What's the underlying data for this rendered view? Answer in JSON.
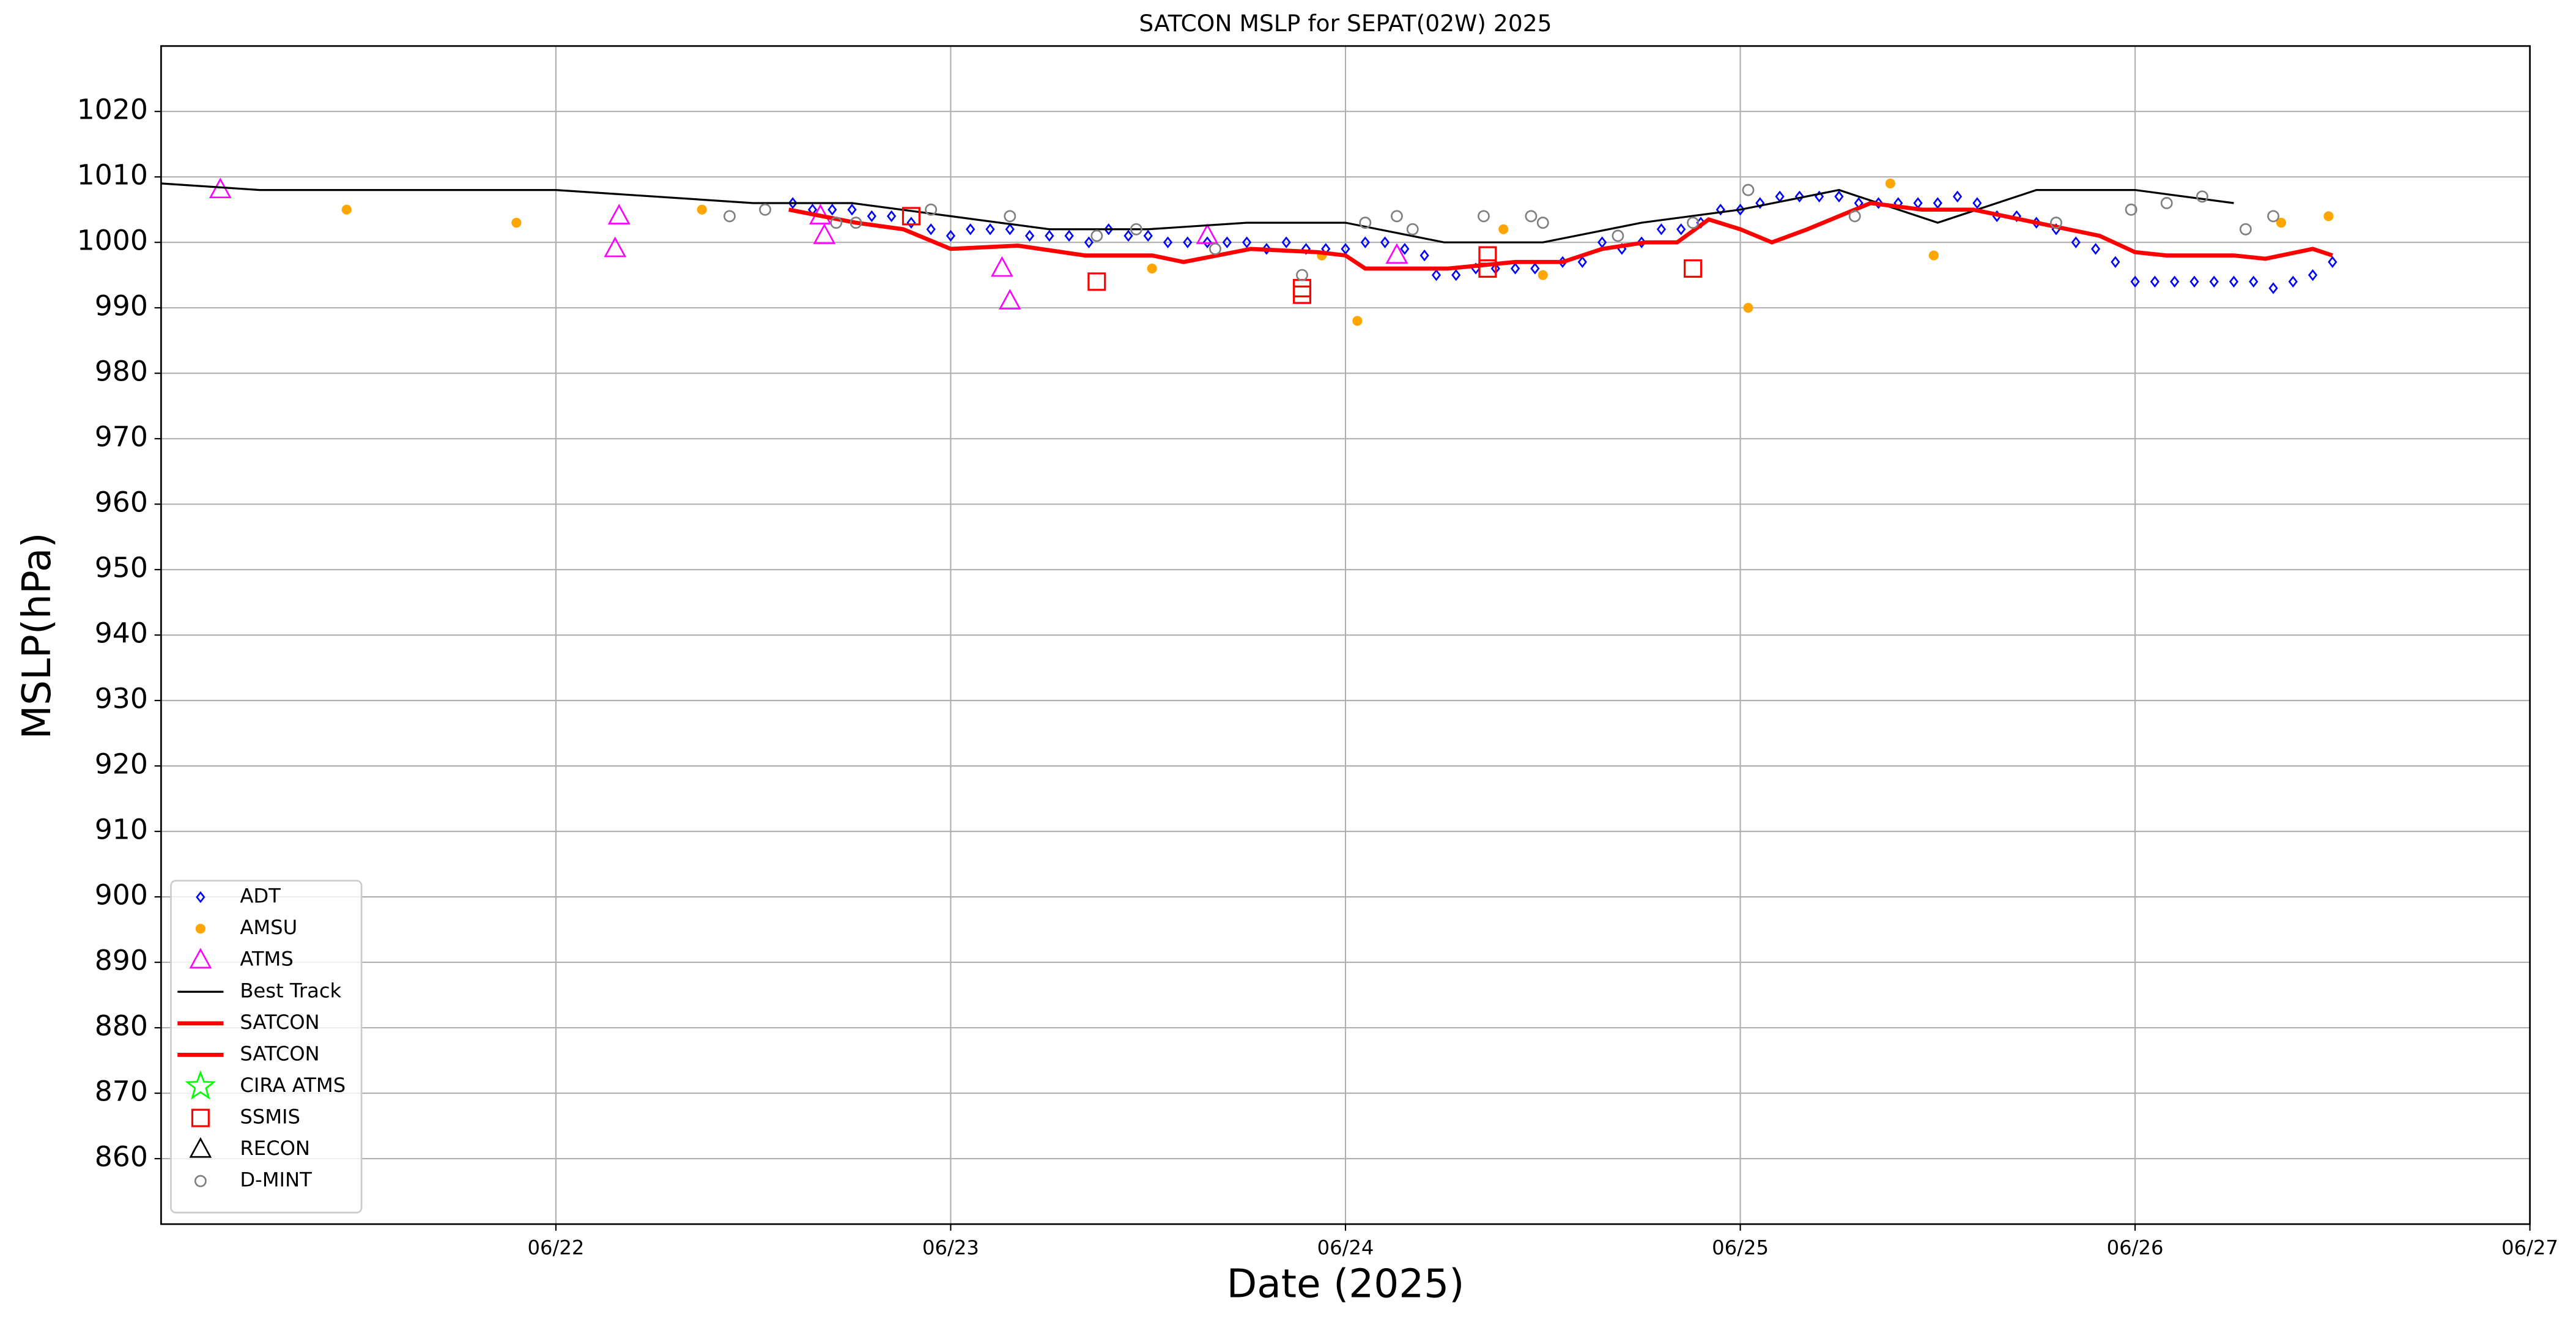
{
  "chart_data": {
    "type": "scatter",
    "title": "SATCON MSLP for SEPAT(02W) 2025",
    "x_label": "Date (2025)",
    "y_label": "MSLP(hPa)",
    "xlim": [
      21,
      27
    ],
    "xticks": [
      {
        "value": 22,
        "label": "06/22"
      },
      {
        "value": 23,
        "label": "06/23"
      },
      {
        "value": 24,
        "label": "06/24"
      },
      {
        "value": 25,
        "label": "06/25"
      },
      {
        "value": 26,
        "label": "06/26"
      },
      {
        "value": 27,
        "label": "06/27"
      }
    ],
    "ylim": [
      850,
      1030
    ],
    "yticks": [
      860,
      870,
      880,
      890,
      900,
      910,
      920,
      930,
      940,
      950,
      960,
      970,
      980,
      990,
      1000,
      1010,
      1020
    ],
    "grid": true,
    "legend": "lower left",
    "series": [
      {
        "name": "ADT",
        "color": "#0000ff",
        "marker": "diamond",
        "x": [
          22.6,
          22.65,
          22.7,
          22.75,
          22.8,
          22.85,
          22.9,
          22.95,
          23.0,
          23.05,
          23.1,
          23.15,
          23.2,
          23.25,
          23.3,
          23.35,
          23.4,
          23.45,
          23.5,
          23.55,
          23.6,
          23.65,
          23.7,
          23.75,
          23.8,
          23.85,
          23.9,
          23.95,
          24.0,
          24.05,
          24.1,
          24.15,
          24.2,
          24.23,
          24.28,
          24.33,
          24.38,
          24.43,
          24.48,
          24.55,
          24.6,
          24.65,
          24.7,
          24.75,
          24.8,
          24.85,
          24.9,
          24.95,
          25.0,
          25.05,
          25.1,
          25.15,
          25.2,
          25.25,
          25.3,
          25.35,
          25.4,
          25.45,
          25.5,
          25.55,
          25.6,
          25.65,
          25.7,
          25.75,
          25.8,
          25.85,
          25.9,
          25.95,
          26.0,
          26.05,
          26.1,
          26.15,
          26.2,
          26.25,
          26.3,
          26.35,
          26.4,
          26.45,
          26.5
        ],
        "values": [
          1006,
          1005,
          1005,
          1005,
          1004,
          1004,
          1003,
          1002,
          1001,
          1002,
          1002,
          1002,
          1001,
          1001,
          1001,
          1000,
          1002,
          1001,
          1001,
          1000,
          1000,
          1000,
          1000,
          1000,
          999,
          1000,
          999,
          999,
          999,
          1000,
          1000,
          999,
          998,
          995,
          995,
          996,
          996,
          996,
          996,
          997,
          997,
          1000,
          999,
          1000,
          1002,
          1002,
          1003,
          1005,
          1005,
          1006,
          1007,
          1007,
          1007,
          1007,
          1006,
          1006,
          1006,
          1006,
          1006,
          1007,
          1006,
          1004,
          1004,
          1003,
          1002,
          1000,
          999,
          997,
          994,
          994,
          994,
          994,
          994,
          994,
          994,
          993,
          994,
          995,
          997
        ]
      },
      {
        "name": "AMSU",
        "color": "#ffa500",
        "marker": "dot",
        "x": [
          21.47,
          21.9,
          22.37,
          23.51,
          23.94,
          24.03,
          24.4,
          24.5,
          25.02,
          25.38,
          25.49,
          26.37,
          26.49
        ],
        "values": [
          1005,
          1003,
          1005,
          996,
          998,
          988,
          1002,
          995,
          990,
          1009,
          998,
          1003,
          1004
        ]
      },
      {
        "name": "ATMS",
        "color": "#ff00ff",
        "marker": "triangle",
        "x": [
          21.15,
          22.15,
          22.16,
          22.67,
          22.68,
          23.13,
          23.15,
          23.65,
          24.13
        ],
        "values": [
          1008,
          999,
          1004,
          1004,
          1001,
          996,
          991,
          1001,
          998
        ]
      },
      {
        "name": "Best Track",
        "color": "#000000",
        "marker": "line",
        "width": 1.2,
        "x": [
          21.0,
          21.25,
          22.0,
          22.5,
          22.75,
          23.0,
          23.25,
          23.5,
          23.75,
          24.0,
          24.25,
          24.5,
          24.75,
          25.0,
          25.25,
          25.5,
          25.75,
          26.0,
          26.25
        ],
        "values": [
          1009,
          1008,
          1008,
          1006,
          1006,
          1004,
          1002,
          1002,
          1003,
          1003,
          1000,
          1000,
          1003,
          1005,
          1008,
          1003,
          1008,
          1008,
          1006
        ]
      },
      {
        "name": "SATCON",
        "color": "#ff0000",
        "marker": "line",
        "width": 2.5,
        "x": [
          22.59,
          22.76,
          22.88,
          23.0,
          23.17,
          23.34,
          23.51,
          23.59,
          23.76,
          23.93,
          24.0,
          24.05,
          24.26,
          24.43,
          24.55,
          24.65,
          24.76,
          24.84,
          24.92,
          25.0,
          25.08,
          25.17,
          25.25,
          25.33,
          25.46,
          25.59,
          25.75,
          25.91,
          26.0,
          26.08,
          26.25,
          26.33,
          26.45,
          26.5
        ],
        "values": [
          1005,
          1003,
          1002,
          999,
          999.5,
          998,
          998,
          997,
          999,
          998.5,
          998,
          996,
          996,
          997,
          997,
          999,
          1000,
          1000,
          1003.5,
          1002,
          1000,
          1002,
          1004,
          1006,
          1005,
          1005,
          1003,
          1001,
          998.5,
          998,
          998,
          997.5,
          999,
          998
        ]
      },
      {
        "name": "SATCON",
        "color": "#ff0000",
        "marker": "line",
        "width": 2.5,
        "x": [],
        "values": []
      },
      {
        "name": "CIRA ATMS",
        "color": "#00ff00",
        "marker": "star",
        "x": [],
        "values": []
      },
      {
        "name": "SSMIS",
        "color": "#ff0000",
        "marker": "square",
        "x": [
          22.9,
          23.37,
          23.89,
          23.89,
          24.36,
          24.36,
          24.88
        ],
        "values": [
          1004,
          994,
          993,
          992,
          998,
          996,
          996
        ]
      },
      {
        "name": "RECON",
        "color": "#000000",
        "marker": "triangle",
        "x": [],
        "values": []
      },
      {
        "name": "D-MINT",
        "color": "#808080",
        "marker": "circle",
        "x": [
          22.44,
          22.53,
          22.71,
          22.76,
          22.95,
          23.15,
          23.37,
          23.47,
          23.67,
          23.89,
          24.05,
          24.13,
          24.17,
          24.35,
          24.47,
          24.5,
          24.69,
          24.88,
          25.02,
          25.29,
          25.8,
          25.99,
          26.08,
          26.17,
          26.28,
          26.35
        ],
        "values": [
          1004,
          1005,
          1003,
          1003,
          1005,
          1004,
          1001,
          1002,
          999,
          995,
          1003,
          1004,
          1002,
          1004,
          1004,
          1003,
          1001,
          1003,
          1008,
          1004,
          1003,
          1005,
          1006,
          1007,
          1002,
          1004
        ]
      }
    ]
  }
}
